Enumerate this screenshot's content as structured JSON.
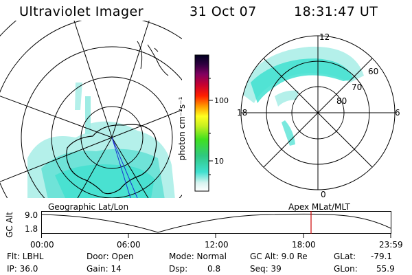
{
  "header": {
    "instrument": "Ultraviolet Imager",
    "date": "31 Oct 07",
    "time": "18:31:47 UT"
  },
  "colorbar": {
    "unit_label": "photon cm⁻²s⁻¹",
    "ticks": [
      "100",
      "10"
    ]
  },
  "right_map": {
    "mlt_labels": {
      "top": "12",
      "left": "18",
      "right": "6",
      "bottom": "0"
    },
    "lat_labels": [
      "60",
      "70",
      "80"
    ]
  },
  "timeline": {
    "left_label": "Geographic Lat/Lon",
    "right_label": "Apex  MLat/MLT",
    "axis_title": "GC Alt",
    "y_ticks": [
      "9.0",
      "1.8"
    ],
    "x_ticks": [
      "00:00",
      "06:00",
      "12:00",
      "18:00",
      "23:59"
    ],
    "marker_time": "18:31:47"
  },
  "info": {
    "flt": "Flt: LBHL",
    "ip": "IP: 36.0",
    "door": "Door: Open",
    "gain": "Gain: 14",
    "mode": "Mode: Normal",
    "dsp_label": "Dsp:",
    "dsp_value": "0.8",
    "gcalt": "GC Alt: 9.0 Re",
    "seq": "Seq: 39",
    "glat_label": "GLat:",
    "glat_value": "-79.1",
    "glon_label": "GLon:",
    "glon_value": "55.9"
  },
  "colors": {
    "aurora": "#40e0d0",
    "aurora_light": "#b4f0ea",
    "marker": "#cc0000"
  }
}
